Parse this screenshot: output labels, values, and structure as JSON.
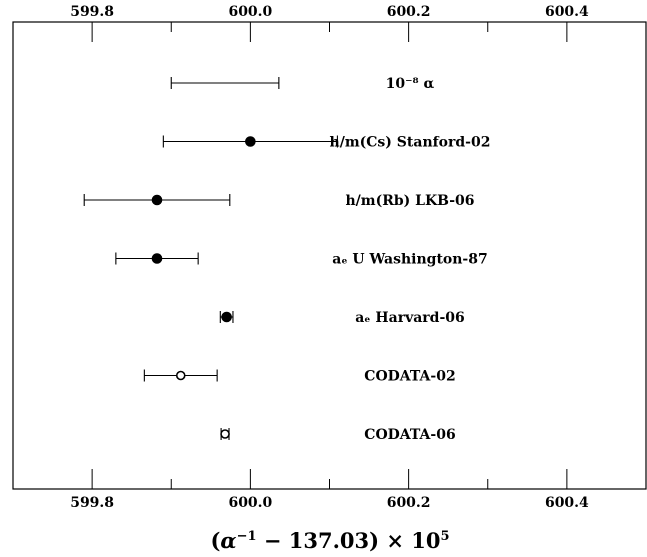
{
  "chart_data": {
    "type": "scatter",
    "title": "",
    "xlabel": "(α⁻¹ − 137.03) × 10⁵",
    "ylabel": "",
    "xlim": [
      599.7,
      600.5
    ],
    "xticks": [
      599.8,
      600.0,
      600.2,
      600.4
    ],
    "xtick_labels": [
      "599.8",
      "600.0",
      "600.2",
      "600.4"
    ],
    "grid": false,
    "points": [
      {
        "label": "10⁻⁸ α",
        "x": 599.968,
        "low": 599.9,
        "high": 600.036,
        "marker": "none"
      },
      {
        "label": "h/m(Cs) Stanford-02",
        "x": 600.0,
        "low": 599.89,
        "high": 600.11,
        "marker": "filled"
      },
      {
        "label": "h/m(Rb) LKB-06",
        "x": 599.882,
        "low": 599.79,
        "high": 599.974,
        "marker": "filled"
      },
      {
        "label": "aₑ U Washington-87",
        "x": 599.882,
        "low": 599.83,
        "high": 599.934,
        "marker": "filled"
      },
      {
        "label": "aₑ Harvard-06",
        "x": 599.97,
        "low": 599.962,
        "high": 599.978,
        "marker": "filled"
      },
      {
        "label": "CODATA-02",
        "x": 599.912,
        "low": 599.866,
        "high": 599.958,
        "marker": "open"
      },
      {
        "label": "CODATA-06",
        "x": 599.968,
        "low": 599.963,
        "high": 599.973,
        "marker": "open"
      }
    ]
  }
}
